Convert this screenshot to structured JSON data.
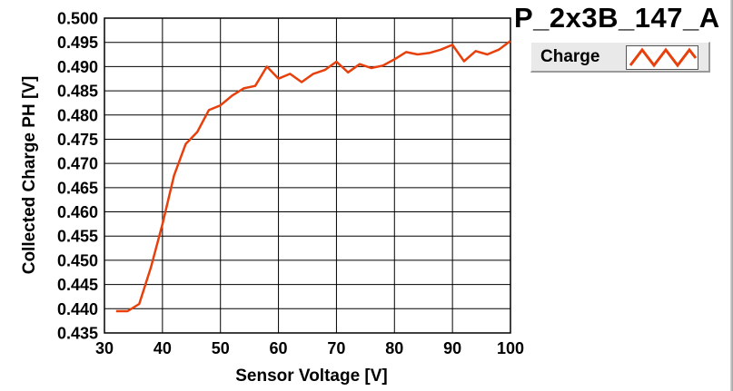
{
  "title": "P_2x3B_147_A",
  "legend": {
    "label": "Charge",
    "color": "#e8400c"
  },
  "colors": {
    "series": "#e8400c",
    "grid": "#000000",
    "plot_bg": "#ffffff"
  },
  "chart_data": {
    "type": "line",
    "title": "P_2x3B_147_A",
    "xlabel": "Sensor Voltage [V]",
    "ylabel": "Collected Charge PH [V]",
    "xlim": [
      30,
      100
    ],
    "ylim": [
      0.435,
      0.5
    ],
    "x_ticks": [
      30,
      40,
      50,
      60,
      70,
      80,
      90,
      100
    ],
    "y_ticks": [
      0.435,
      0.44,
      0.445,
      0.45,
      0.455,
      0.46,
      0.465,
      0.47,
      0.475,
      0.48,
      0.485,
      0.49,
      0.495,
      0.5
    ],
    "grid": true,
    "legend_position": "top-right",
    "series": [
      {
        "name": "Charge",
        "x": [
          32,
          34,
          36,
          38,
          40,
          42,
          44,
          46,
          48,
          50,
          52,
          54,
          56,
          58,
          60,
          62,
          64,
          66,
          68,
          70,
          72,
          74,
          76,
          78,
          80,
          82,
          84,
          86,
          88,
          90,
          92,
          94,
          96,
          98,
          100
        ],
        "y": [
          0.4395,
          0.4395,
          0.441,
          0.4485,
          0.4575,
          0.4675,
          0.474,
          0.4765,
          0.481,
          0.482,
          0.484,
          0.4855,
          0.486,
          0.49,
          0.4875,
          0.4885,
          0.4868,
          0.4885,
          0.4893,
          0.491,
          0.4888,
          0.4905,
          0.4897,
          0.4902,
          0.4915,
          0.493,
          0.4925,
          0.4928,
          0.4935,
          0.4945,
          0.4911,
          0.4932,
          0.4925,
          0.4935,
          0.4953
        ]
      }
    ]
  }
}
